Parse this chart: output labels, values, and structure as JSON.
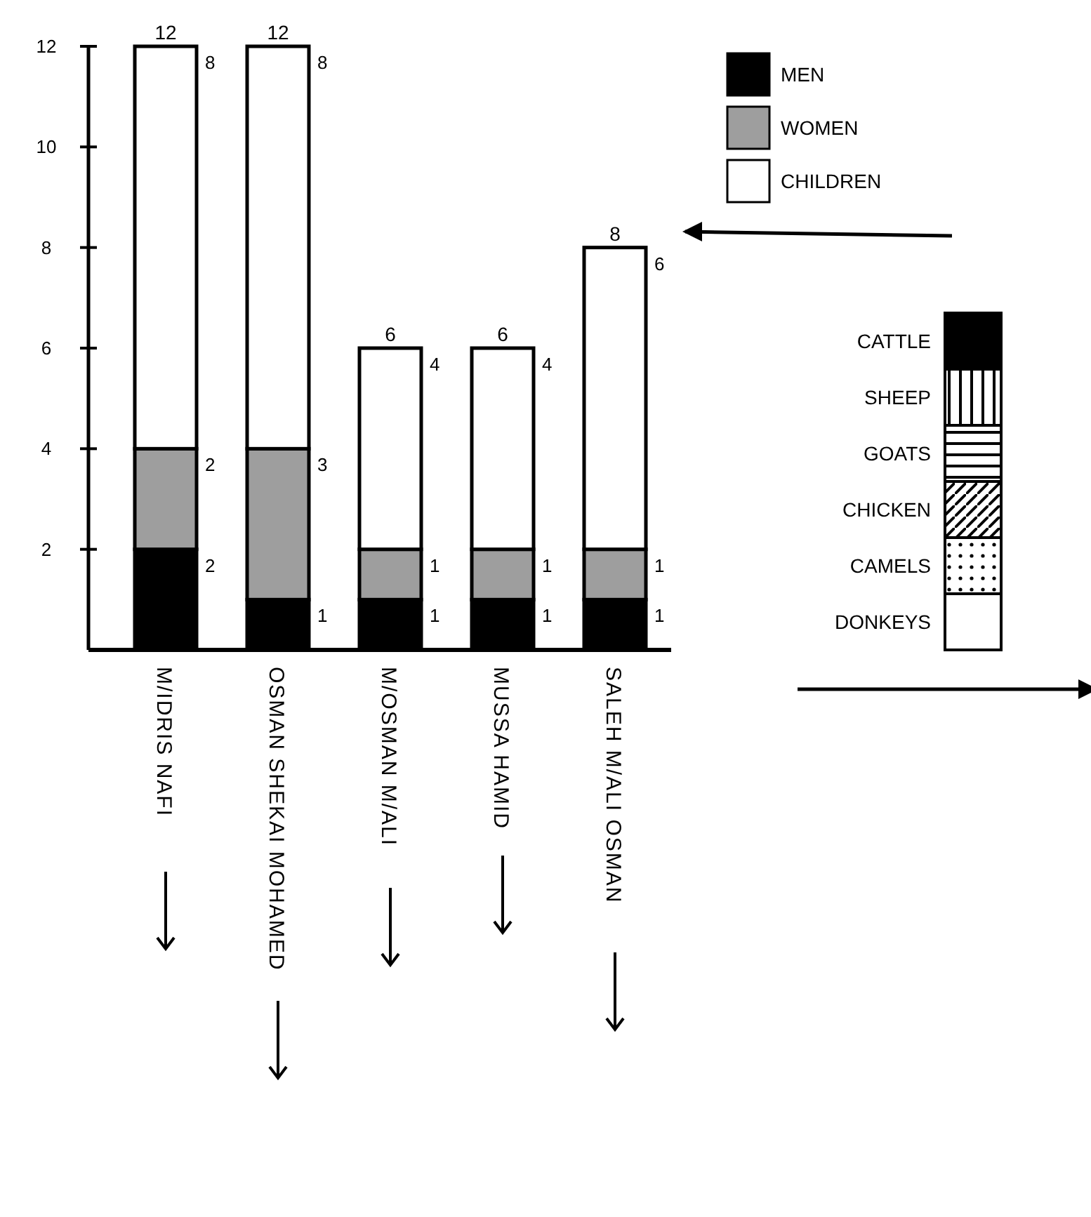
{
  "chart_data": {
    "type": "bar",
    "stacked": true,
    "categories": [
      "M/IDRIS NAFI",
      "OSMAN SHEKAI MOHAMED",
      "M/OSMAN M/ALI",
      "MUSSA HAMID",
      "SALEH M/ALI OSMAN"
    ],
    "series": [
      {
        "name": "MEN",
        "color": "#000000",
        "values": [
          2,
          1,
          1,
          1,
          1
        ]
      },
      {
        "name": "WOMEN",
        "color": "#9e9e9e",
        "values": [
          2,
          3,
          1,
          1,
          1
        ]
      },
      {
        "name": "CHILDREN",
        "color": "#ffffff",
        "values": [
          8,
          8,
          4,
          4,
          6
        ]
      }
    ],
    "data_labels": true,
    "totals": [
      "12",
      "12",
      "6",
      "6",
      "8"
    ],
    "ylim": [
      0,
      12
    ],
    "yticks": [
      2,
      4,
      6,
      8,
      10,
      12
    ],
    "grid": false,
    "legend": "top right",
    "annotations": [
      "CATTLE",
      "SHEEP",
      "GOATS",
      "CHICKEN",
      "CAMELS",
      "DONKEYS"
    ]
  }
}
